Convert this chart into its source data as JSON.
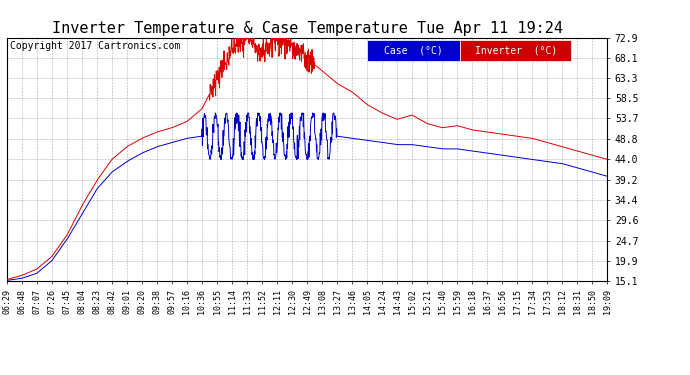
{
  "title": "Inverter Temperature & Case Temperature Tue Apr 11 19:24",
  "copyright": "Copyright 2017 Cartronics.com",
  "background_color": "#ffffff",
  "grid_color": "#999999",
  "ylim": [
    15.1,
    72.9
  ],
  "yticks": [
    15.1,
    19.9,
    24.7,
    29.6,
    34.4,
    39.2,
    44.0,
    48.8,
    53.7,
    58.5,
    63.3,
    68.1,
    72.9
  ],
  "inverter_color": "#dd0000",
  "case_color": "#0000cc",
  "legend_case_bg": "#0000cc",
  "legend_inverter_bg": "#cc0000",
  "legend_case_label": "Case  (°C)",
  "legend_inverter_label": "Inverter  (°C)",
  "title_fontsize": 11,
  "copyright_fontsize": 7,
  "xtick_labels": [
    "06:29",
    "06:48",
    "07:07",
    "07:26",
    "07:45",
    "08:04",
    "08:23",
    "08:42",
    "09:01",
    "09:20",
    "09:38",
    "09:57",
    "10:16",
    "10:36",
    "10:55",
    "11:14",
    "11:33",
    "11:52",
    "12:11",
    "12:30",
    "12:49",
    "13:08",
    "13:27",
    "13:46",
    "14:05",
    "14:24",
    "14:43",
    "15:02",
    "15:21",
    "15:40",
    "15:59",
    "16:18",
    "16:37",
    "16:56",
    "17:15",
    "17:34",
    "17:53",
    "18:12",
    "18:31",
    "18:50",
    "19:09"
  ]
}
